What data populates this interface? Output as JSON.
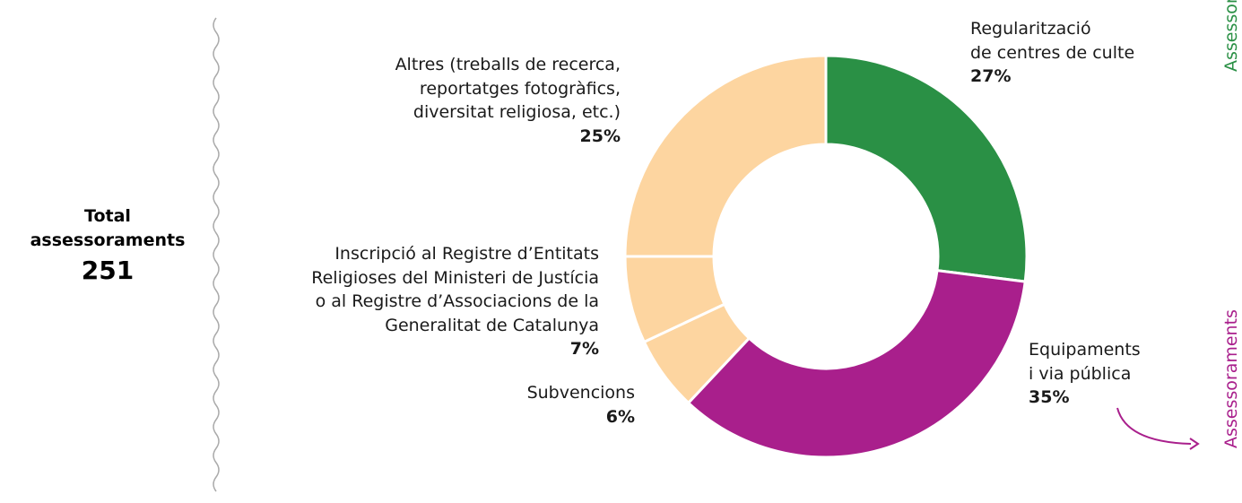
{
  "chart_data": {
    "type": "donut",
    "categories": [
      "Regularització\nde centres de culte",
      "Equipaments\ni via pública",
      "Subvencions",
      "Inscripció al Registre d’Entitats\nReligioses del Ministeri de Justícia\no al Registre d’Associacions de la\nGeneralitat de Catalunya",
      "Altres (treballs de recerca,\nreportatges fotogràfics,\ndiversitat religiosa, etc.)"
    ],
    "values": [
      27,
      35,
      6,
      7,
      25
    ],
    "value_labels": [
      "27%",
      "35%",
      "6%",
      "7%",
      "25%"
    ],
    "colors": [
      "#2a9045",
      "#a91f8c",
      "#fdd5a0",
      "#fdd5a0",
      "#fdd5a0"
    ]
  },
  "total": {
    "label": "Total\nassessoraments",
    "value": 251
  },
  "side_labels": [
    {
      "text": "Assessoraments",
      "color": "#2a9045"
    },
    {
      "text": "Assessoraments",
      "color": "#a91f8c"
    }
  ]
}
